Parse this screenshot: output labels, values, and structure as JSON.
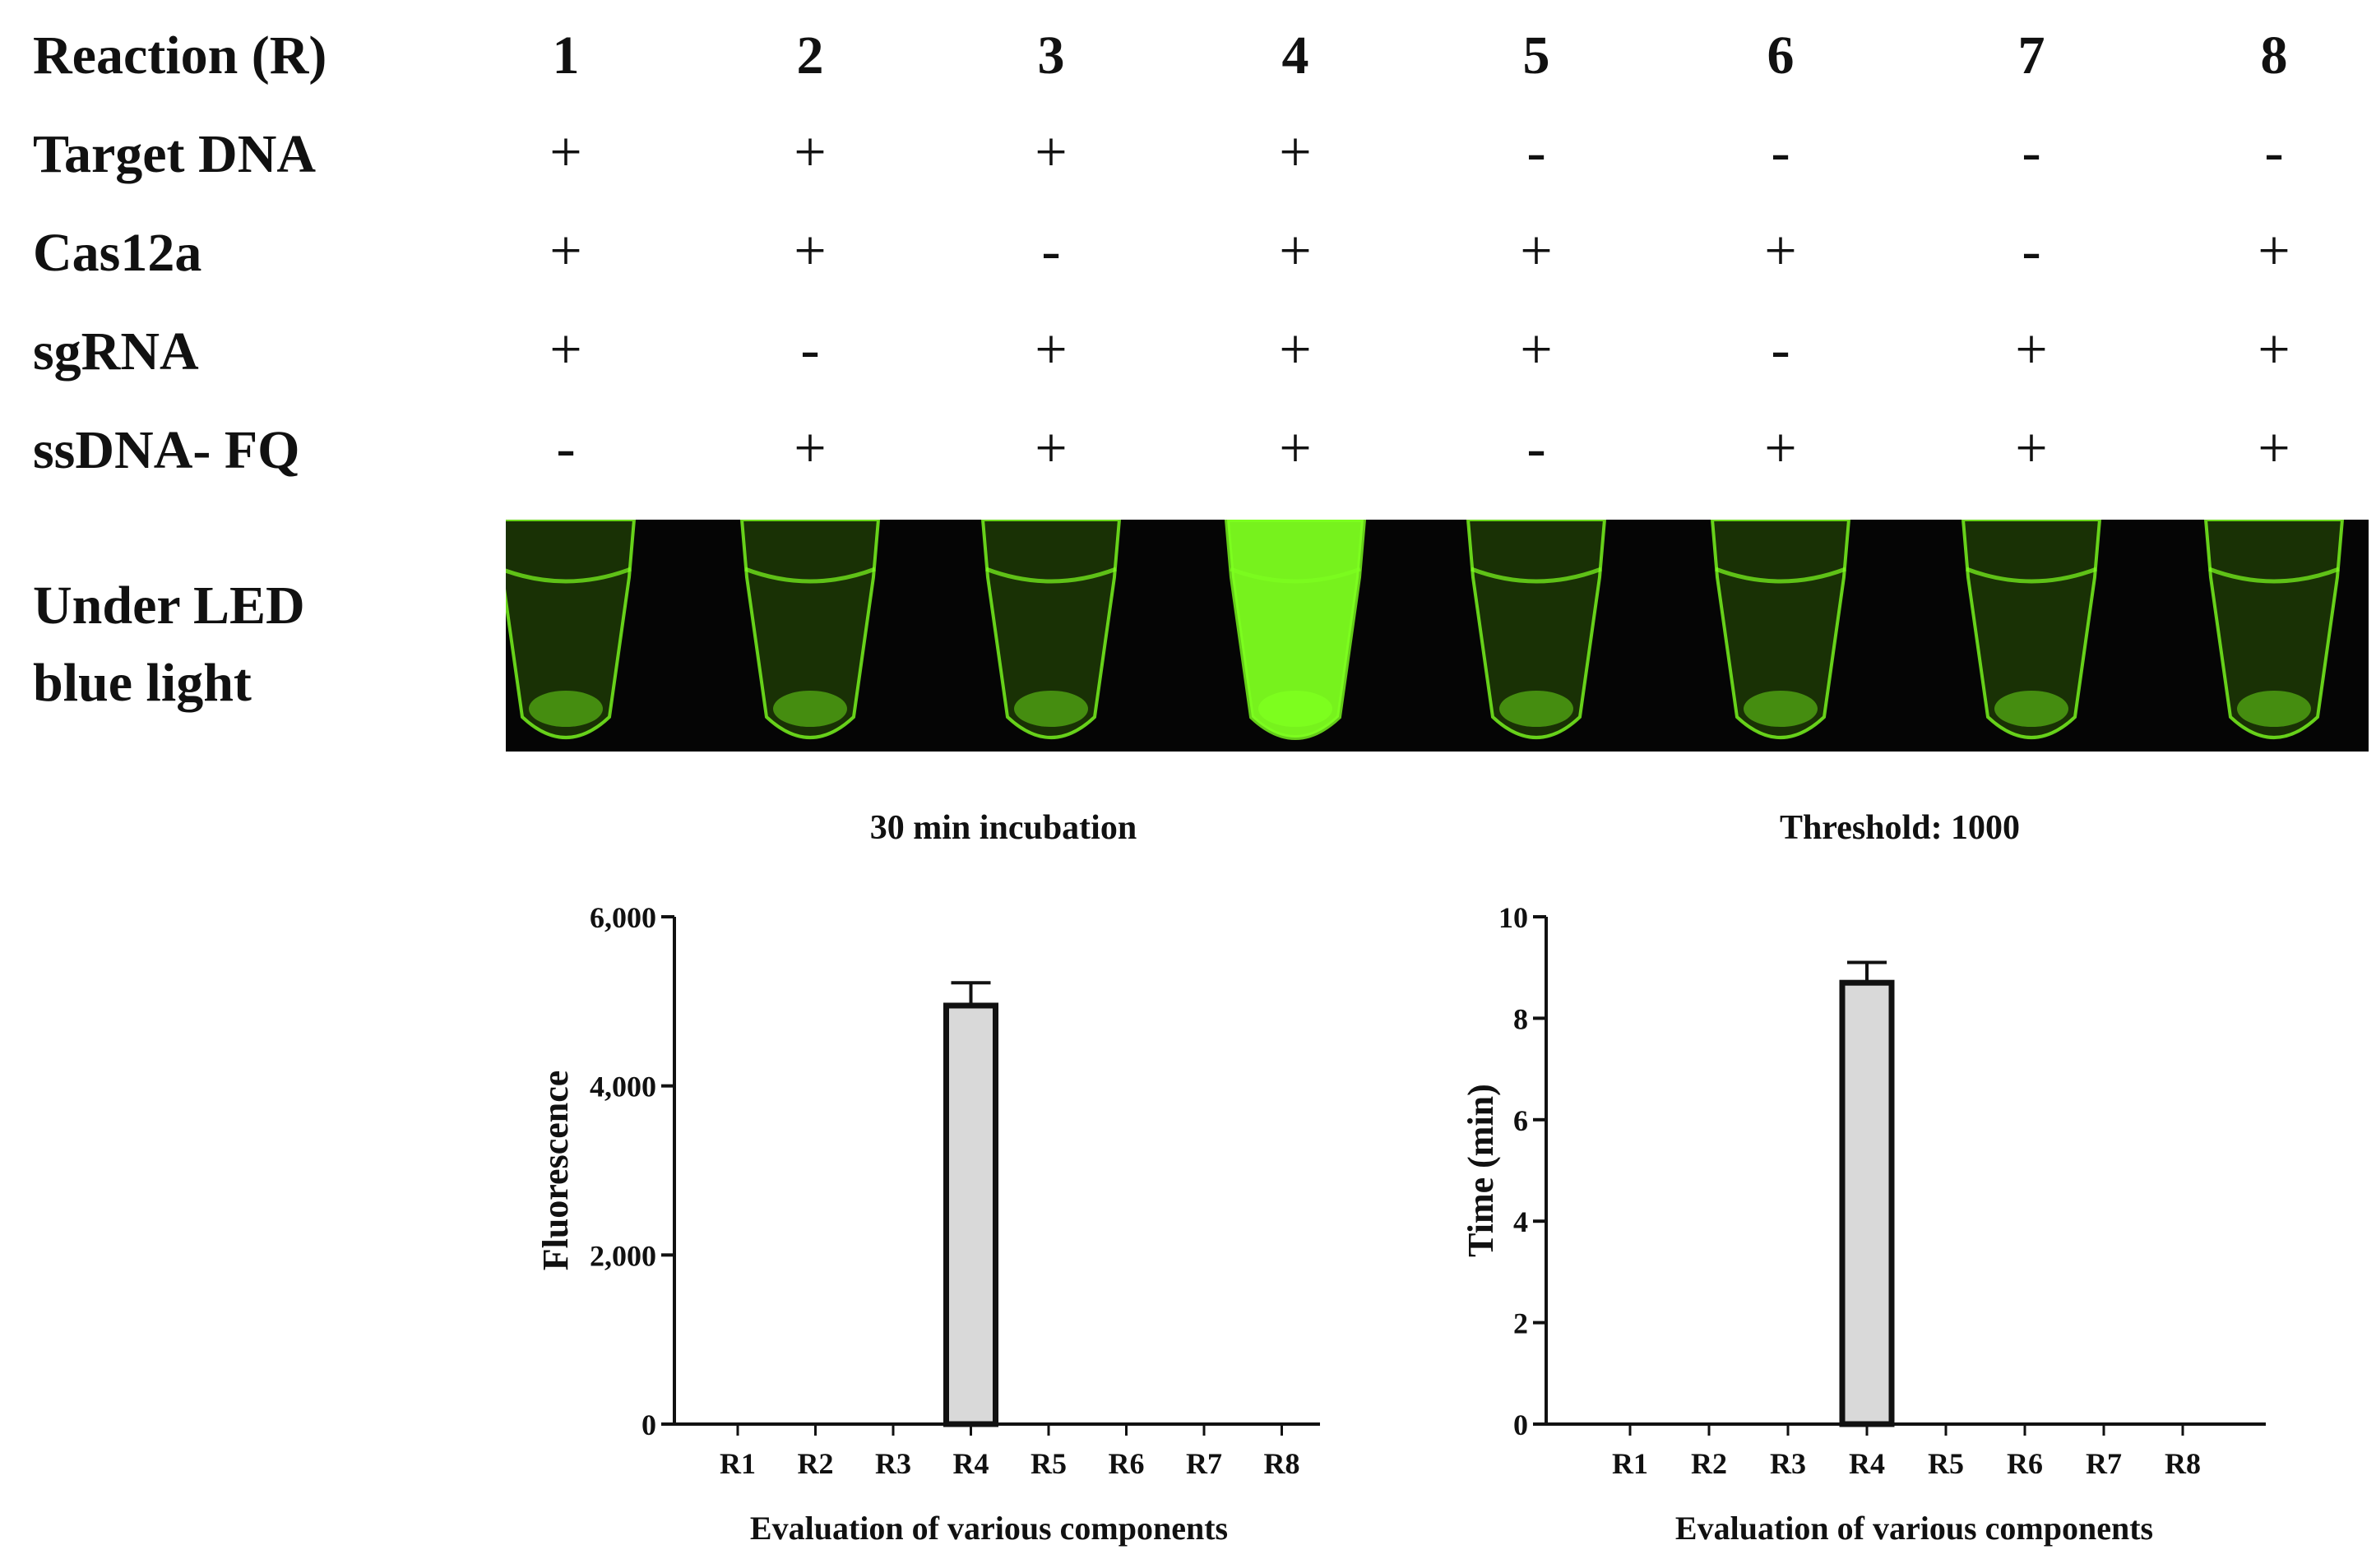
{
  "table": {
    "header_label": "Reaction (R)",
    "reactions": [
      "1",
      "2",
      "3",
      "4",
      "5",
      "6",
      "7",
      "8"
    ],
    "rows": [
      {
        "label": "Target DNA",
        "values": [
          "+",
          "+",
          "+",
          "+",
          "-",
          "-",
          "-",
          "-"
        ]
      },
      {
        "label": "Cas12a",
        "values": [
          "+",
          "+",
          "-",
          "+",
          "+",
          "+",
          "-",
          "+"
        ]
      },
      {
        "label": "sgRNA",
        "values": [
          "+",
          "-",
          "+",
          "+",
          "+",
          "-",
          "+",
          "+"
        ]
      },
      {
        "label": "ssDNA- FQ",
        "values": [
          "-",
          "+",
          "+",
          "+",
          "-",
          "+",
          "+",
          "+"
        ]
      }
    ]
  },
  "photo": {
    "label_line1": "Under LED",
    "label_line2": "blue light",
    "bright_tube": 4,
    "glow_color": "#7dff1f"
  },
  "chart_data": [
    {
      "type": "bar",
      "title": "30 min incubation",
      "xlabel": "Evaluation of various components",
      "ylabel": "Fluorescence",
      "categories": [
        "R1",
        "R2",
        "R3",
        "R4",
        "R5",
        "R6",
        "R7",
        "R8"
      ],
      "values": [
        0,
        0,
        0,
        4950,
        0,
        0,
        0,
        0
      ],
      "errors": [
        0,
        0,
        0,
        270,
        0,
        0,
        0,
        0
      ],
      "ylim": [
        0,
        6000
      ],
      "yticks": [
        "0",
        "2,000",
        "4,000",
        "6,000"
      ],
      "ytick_values": [
        0,
        2000,
        4000,
        6000
      ],
      "bar_color": "#d9d9d9",
      "grid": false,
      "legend": "none"
    },
    {
      "type": "bar",
      "title": "Threshold: 1000",
      "xlabel": "Evaluation of various components",
      "ylabel": "Time (min)",
      "categories": [
        "R1",
        "R2",
        "R3",
        "R4",
        "R5",
        "R6",
        "R7",
        "R8"
      ],
      "values": [
        0,
        0,
        0,
        8.7,
        0,
        0,
        0,
        0
      ],
      "errors": [
        0,
        0,
        0,
        0.4,
        0,
        0,
        0,
        0
      ],
      "ylim": [
        0,
        10
      ],
      "yticks": [
        "0",
        "2",
        "4",
        "6",
        "8",
        "10"
      ],
      "ytick_values": [
        0,
        2,
        4,
        6,
        8,
        10
      ],
      "bar_color": "#d9d9d9",
      "grid": false,
      "legend": "none"
    }
  ]
}
